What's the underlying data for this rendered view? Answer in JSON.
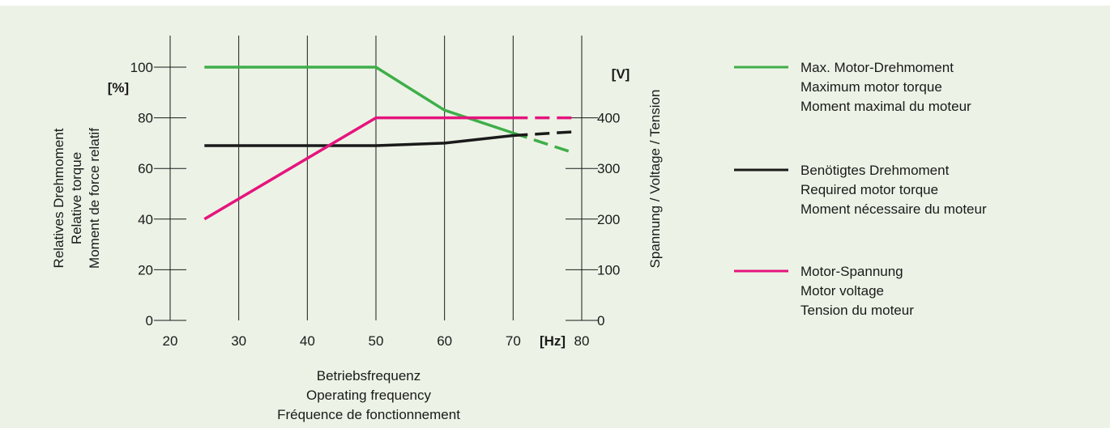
{
  "colors": {
    "background": "#ecf3e6",
    "max_torque": "#3fae49",
    "required_torque": "#1a1a1a",
    "voltage": "#e5147d",
    "grid": "#1a1a1a"
  },
  "chart_data": {
    "type": "line",
    "x_unit": "[Hz]",
    "x_label_lines": [
      "Betriebsfrequenz",
      "Operating frequency",
      "Fréquence de fonctionnement"
    ],
    "x_ticks": [
      20,
      30,
      40,
      50,
      60,
      70,
      80
    ],
    "xlim": [
      20,
      80
    ],
    "y_left_unit": "[%]",
    "y_left_label_lines": [
      "Relatives Drehmoment",
      "Relative torque",
      "Moment de force relatif"
    ],
    "y_left_ticks": [
      0,
      20,
      40,
      60,
      80,
      100
    ],
    "ylim_left": [
      0,
      100
    ],
    "y_right_unit": "[V]",
    "y_right_label": "Spannung / Voltage / Tension",
    "y_right_ticks": [
      0,
      100,
      200,
      300,
      400
    ],
    "ylim_right": [
      0,
      500
    ],
    "grid": "vertical",
    "legend_position": "right",
    "series": [
      {
        "key": "max_torque",
        "name_lines": [
          "Max. Motor-Drehmoment",
          "Maximum motor torque",
          "Moment maximal du moteur"
        ],
        "axis": "left",
        "solid": [
          [
            25,
            100
          ],
          [
            50,
            100
          ],
          [
            60,
            83
          ],
          [
            70,
            74
          ]
        ],
        "dashed": [
          [
            70,
            74
          ],
          [
            79,
            66
          ]
        ]
      },
      {
        "key": "required_torque",
        "name_lines": [
          "Benötigtes Drehmoment",
          "Required motor torque",
          "Moment nécessaire du moteur"
        ],
        "axis": "left",
        "solid": [
          [
            25,
            69
          ],
          [
            50,
            69
          ],
          [
            60,
            70
          ],
          [
            70,
            73
          ]
        ],
        "dashed": [
          [
            70,
            73
          ],
          [
            79,
            74.5
          ]
        ]
      },
      {
        "key": "voltage",
        "name_lines": [
          "Motor-Spannung",
          "Motor voltage",
          "Tension du moteur"
        ],
        "axis": "right",
        "solid": [
          [
            25,
            200
          ],
          [
            50,
            400
          ],
          [
            70,
            400
          ]
        ],
        "dashed": [
          [
            70,
            400
          ],
          [
            79,
            400
          ]
        ]
      }
    ]
  }
}
